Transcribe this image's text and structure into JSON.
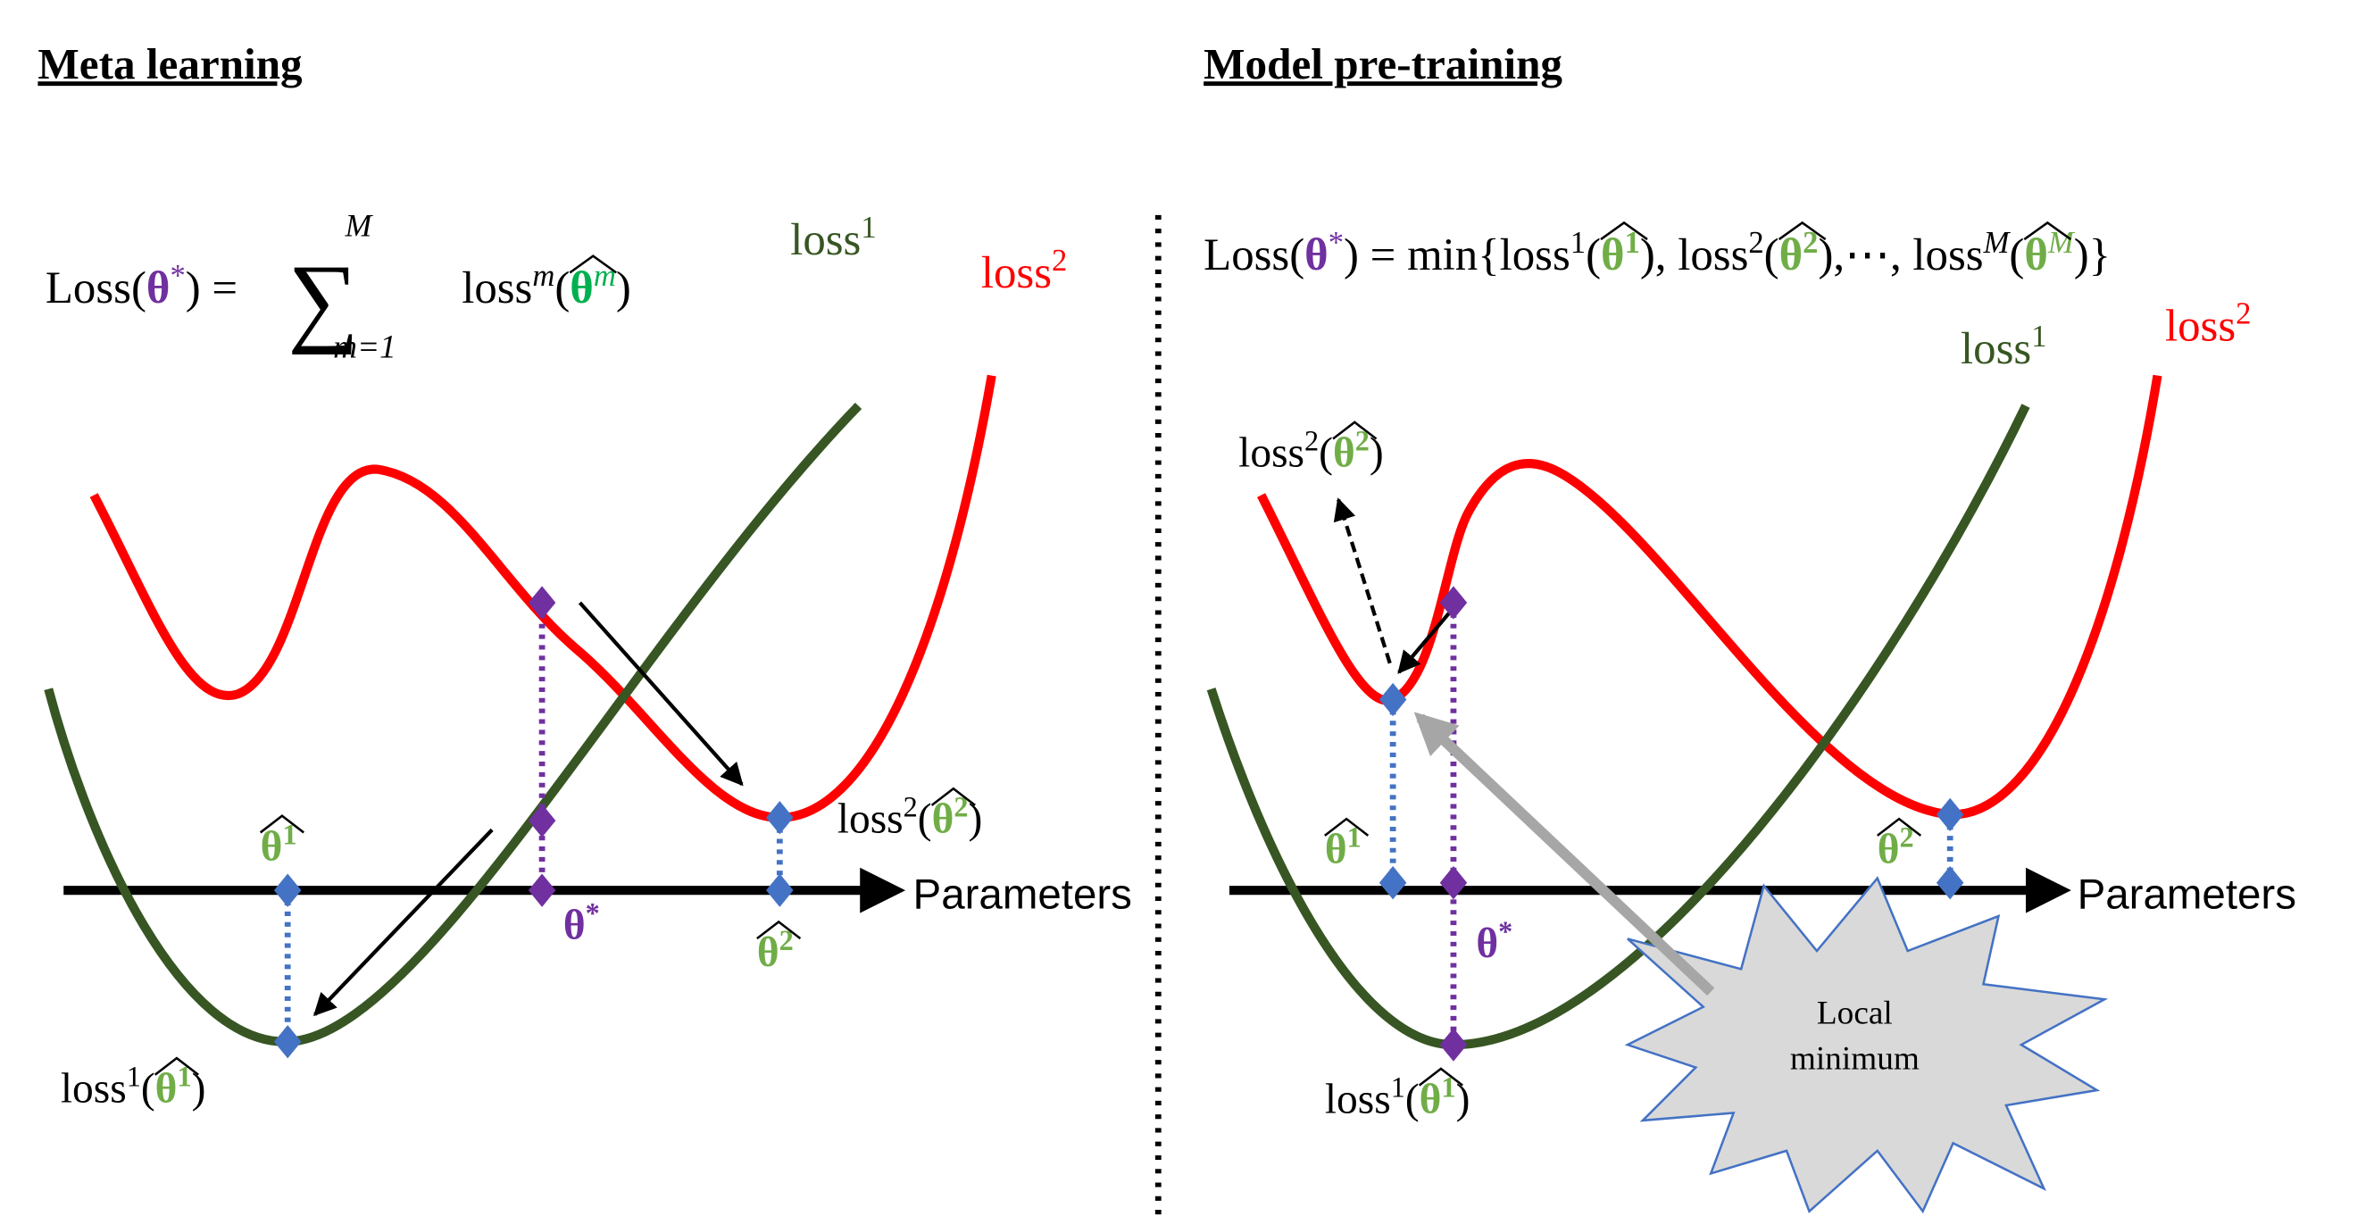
{
  "left": {
    "title": "Meta learning",
    "formula": {
      "lhs": [
        {
          "text": "Loss("
        },
        {
          "text": "θ",
          "color": "#7030a0",
          "bold": true
        },
        {
          "text": "*",
          "sup": true,
          "color": "#7030a0"
        },
        {
          "text": ") = "
        }
      ],
      "sum": "∑",
      "upper": "M",
      "lower": "m=1",
      "rhs": [
        {
          "text": "loss"
        },
        {
          "text": "m",
          "sup": true,
          "italic": true
        },
        {
          "text": "("
        },
        {
          "text": "θ",
          "color": "#00b050",
          "bold": true,
          "hat": true
        },
        {
          "text": "m",
          "sup": true,
          "italic": true,
          "color": "#00b050"
        },
        {
          "text": ")"
        }
      ]
    },
    "axis_label": "Parameters",
    "labels": [
      [
        {
          "text": "loss",
          "color": "#ff0000"
        },
        {
          "text": "2",
          "sup": true,
          "color": "#ff0000"
        }
      ],
      [
        {
          "text": "loss",
          "color": "#375623"
        },
        {
          "text": "1",
          "sup": true,
          "color": "#375623"
        }
      ],
      [
        {
          "text": "loss"
        },
        {
          "text": "2",
          "sup": true
        },
        {
          "text": "("
        },
        {
          "text": "θ",
          "color": "#70ad47",
          "bold": true,
          "hat": true
        },
        {
          "text": "2",
          "sup": true,
          "color": "#70ad47",
          "bold": true
        },
        {
          "text": ")"
        }
      ],
      [
        {
          "text": "θ",
          "color": "#70ad47",
          "bold": true,
          "hat": true
        },
        {
          "text": "1",
          "sup": true,
          "color": "#70ad47",
          "bold": true
        }
      ],
      [
        {
          "text": "θ",
          "color": "#7030a0",
          "bold": true
        },
        {
          "text": "*",
          "sup": true,
          "color": "#7030a0",
          "bold": true
        }
      ],
      [
        {
          "text": "θ",
          "color": "#70ad47",
          "bold": true,
          "hat": true
        },
        {
          "text": "2",
          "sup": true,
          "color": "#70ad47",
          "bold": true
        }
      ],
      [
        {
          "text": "loss"
        },
        {
          "text": "1",
          "sup": true
        },
        {
          "text": "("
        },
        {
          "text": "θ",
          "color": "#70ad47",
          "bold": true,
          "hat": true
        },
        {
          "text": "1",
          "sup": true,
          "color": "#70ad47",
          "bold": true
        },
        {
          "text": ")"
        }
      ]
    ]
  },
  "right": {
    "title": "Model pre-training",
    "formula": [
      {
        "text": "Loss("
      },
      {
        "text": "θ",
        "color": "#7030a0",
        "bold": true
      },
      {
        "text": "*",
        "sup": true,
        "color": "#7030a0"
      },
      {
        "text": ") = min{loss"
      },
      {
        "text": "1",
        "sup": true
      },
      {
        "text": "("
      },
      {
        "text": "θ",
        "color": "#70ad47",
        "bold": true,
        "hat": true
      },
      {
        "text": "1",
        "sup": true,
        "color": "#70ad47",
        "bold": true
      },
      {
        "text": "), loss"
      },
      {
        "text": "2",
        "sup": true
      },
      {
        "text": "("
      },
      {
        "text": "θ",
        "color": "#70ad47",
        "bold": true,
        "hat": true
      },
      {
        "text": "2",
        "sup": true,
        "color": "#70ad47",
        "bold": true
      },
      {
        "text": "),⋯, loss"
      },
      {
        "text": "M",
        "sup": true,
        "italic": true
      },
      {
        "text": "("
      },
      {
        "text": "θ",
        "color": "#70ad47",
        "bold": true,
        "hat": true
      },
      {
        "text": "M",
        "sup": true,
        "italic": true,
        "color": "#70ad47"
      },
      {
        "text": ")}"
      }
    ],
    "axis_label": "Parameters",
    "labels": [
      [
        {
          "text": "loss",
          "color": "#ff0000"
        },
        {
          "text": "2",
          "sup": true,
          "color": "#ff0000"
        }
      ],
      [
        {
          "text": "loss",
          "color": "#375623"
        },
        {
          "text": "1",
          "sup": true,
          "color": "#375623"
        }
      ],
      [
        {
          "text": "loss"
        },
        {
          "text": "2",
          "sup": true
        },
        {
          "text": "("
        },
        {
          "text": "θ",
          "color": "#70ad47",
          "bold": true,
          "hat": true
        },
        {
          "text": "2",
          "sup": true,
          "color": "#70ad47",
          "bold": true
        },
        {
          "text": ")"
        }
      ],
      [
        {
          "text": "θ",
          "color": "#70ad47",
          "bold": true,
          "hat": true
        },
        {
          "text": "1",
          "sup": true,
          "color": "#70ad47",
          "bold": true
        }
      ],
      [
        {
          "text": "θ",
          "color": "#7030a0",
          "bold": true
        },
        {
          "text": "*",
          "sup": true,
          "color": "#7030a0",
          "bold": true
        }
      ],
      [
        {
          "text": "θ",
          "color": "#70ad47",
          "bold": true,
          "hat": true
        },
        {
          "text": "2",
          "sup": true,
          "color": "#70ad47",
          "bold": true
        }
      ],
      [
        {
          "text": "loss"
        },
        {
          "text": "1",
          "sup": true
        },
        {
          "text": "("
        },
        {
          "text": "θ",
          "color": "#70ad47",
          "bold": true,
          "hat": true
        },
        {
          "text": "1",
          "sup": true,
          "color": "#70ad47",
          "bold": true
        },
        {
          "text": ")"
        }
      ]
    ],
    "callout": [
      "Local",
      "minimum"
    ]
  }
}
